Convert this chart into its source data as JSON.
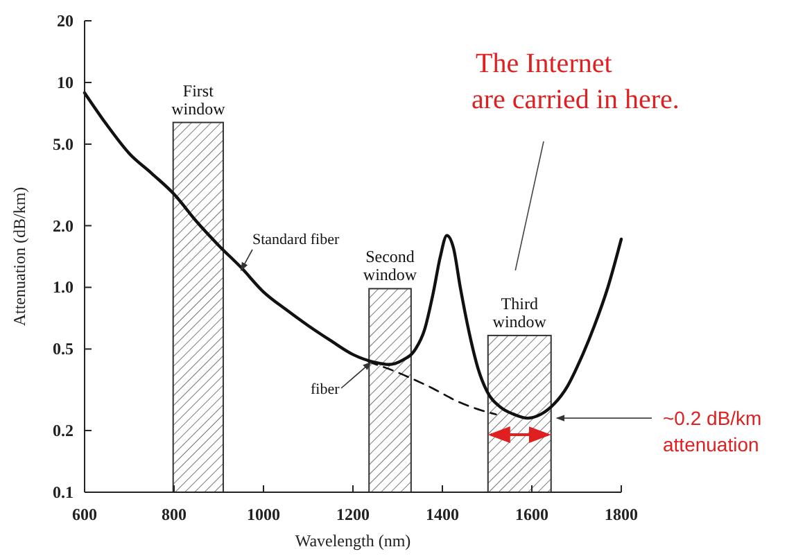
{
  "chart_data": {
    "type": "line",
    "xlabel": "Wavelength (nm)",
    "ylabel": "Attenuation (dB/km)",
    "xlim": [
      600,
      1800
    ],
    "ylim": [
      0.1,
      20
    ],
    "log": "y",
    "xticks": [
      600,
      800,
      1000,
      1200,
      1400,
      1600,
      1800
    ],
    "yticks": [
      0.1,
      0.2,
      0.5,
      {
        "value": 1,
        "label": "1.0"
      },
      {
        "value": 2,
        "label": "2.0"
      },
      {
        "value": 5,
        "label": "5.0"
      },
      10,
      20
    ],
    "grid": false,
    "series": [
      {
        "name": "Standard fiber",
        "color": "#111111",
        "line_style": "solid",
        "x": [
          600,
          650,
          700,
          750,
          800,
          850,
          900,
          950,
          1000,
          1050,
          1100,
          1150,
          1200,
          1250,
          1280,
          1310,
          1340,
          1360,
          1380,
          1395,
          1410,
          1425,
          1440,
          1460,
          1480,
          1500,
          1530,
          1560,
          1590,
          1620,
          1650,
          1680,
          1710,
          1740,
          1770,
          1800
        ],
        "values": [
          8.9,
          6.2,
          4.5,
          3.6,
          2.85,
          2.1,
          1.6,
          1.25,
          0.95,
          0.78,
          0.65,
          0.55,
          0.47,
          0.43,
          0.42,
          0.44,
          0.5,
          0.62,
          0.95,
          1.4,
          1.79,
          1.55,
          1.0,
          0.6,
          0.4,
          0.31,
          0.26,
          0.24,
          0.23,
          0.24,
          0.27,
          0.33,
          0.45,
          0.65,
          1.0,
          1.72
        ]
      },
      {
        "name": "fiber",
        "color": "#111111",
        "line_style": "dashed",
        "x": [
          1200,
          1240,
          1280,
          1330,
          1380,
          1430,
          1490,
          1520
        ],
        "values": [
          0.47,
          0.43,
          0.4,
          0.36,
          0.32,
          0.28,
          0.25,
          0.24
        ]
      }
    ],
    "bands": [
      {
        "axis": "x",
        "from": 798,
        "to": 910,
        "label": "First window"
      },
      {
        "axis": "x",
        "from": 1236,
        "to": 1330,
        "label": "Second window"
      },
      {
        "axis": "x",
        "from": 1502,
        "to": 1643,
        "label": "Third window"
      }
    ],
    "annotations": [
      "The Internet are carried in here.",
      {
        "text": "~0.2 dB/km attenuation",
        "x": 1650,
        "y": 0.23
      }
    ]
  }
}
